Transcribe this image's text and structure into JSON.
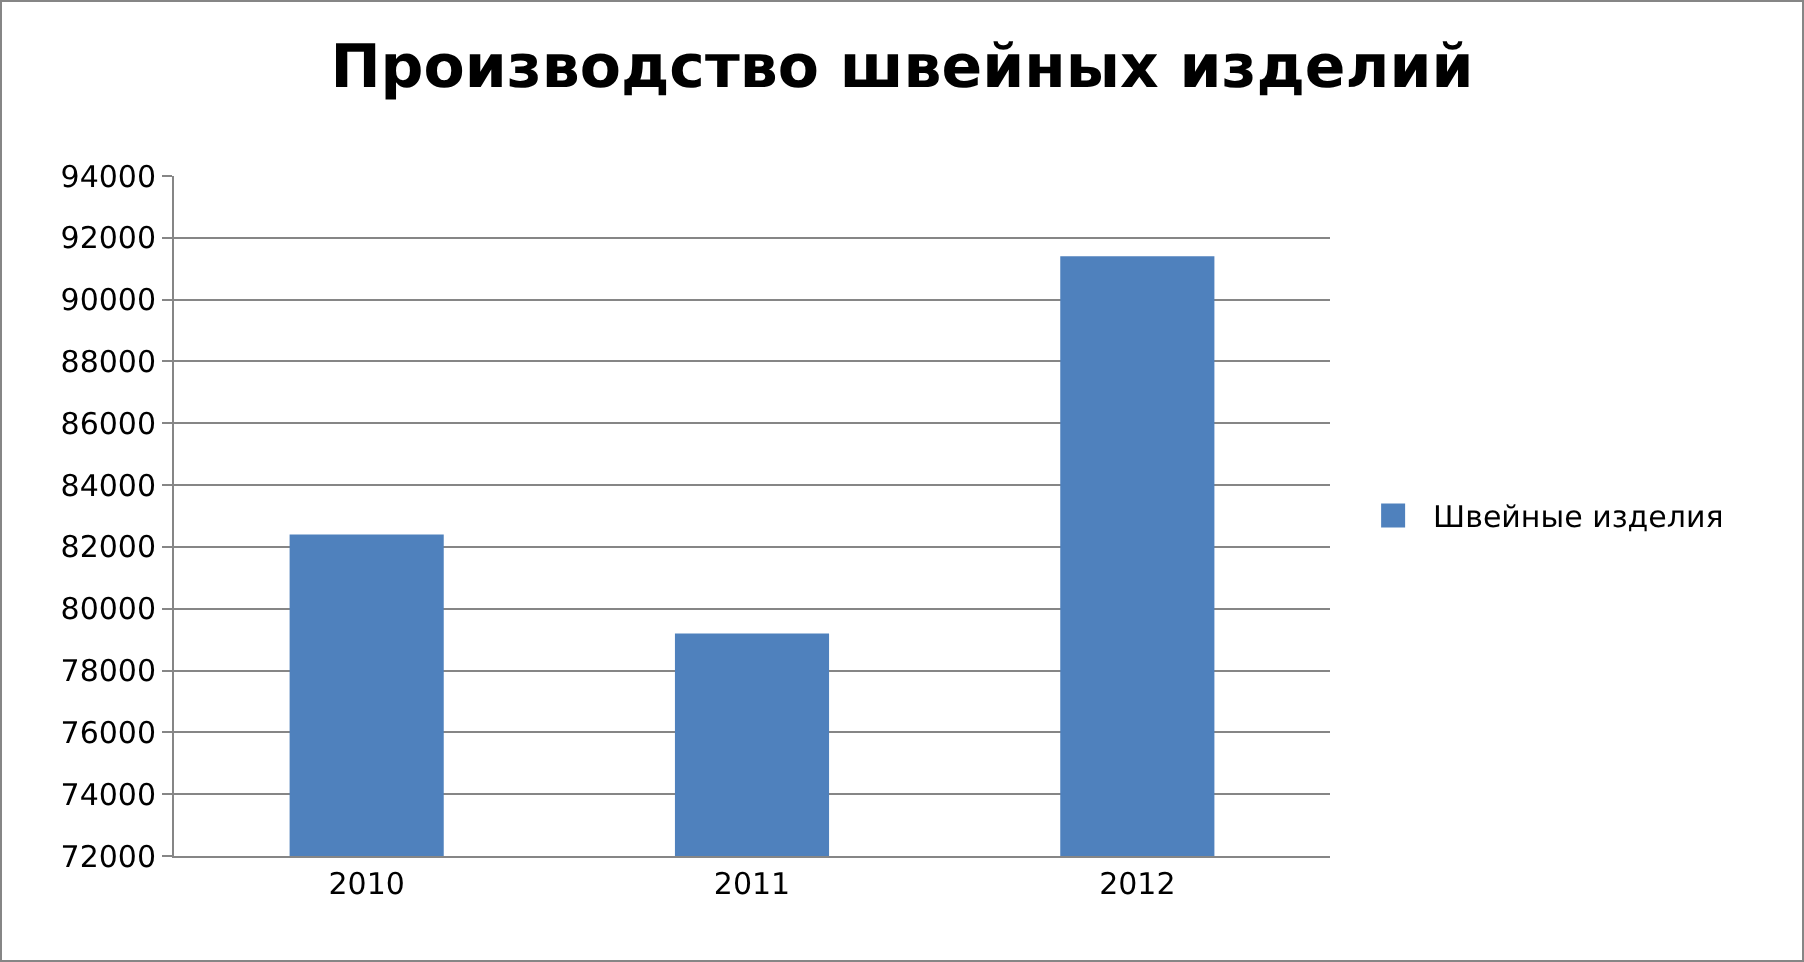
{
  "chart_data": {
    "type": "bar",
    "title": "Производство швейных изделий",
    "categories": [
      "2010",
      "2011",
      "2012"
    ],
    "series": [
      {
        "name": "Швейные изделия",
        "color": "#4f81bd",
        "values": [
          82400,
          79200,
          91400
        ]
      }
    ],
    "ylim": [
      72000,
      94000
    ],
    "yticks": [
      72000,
      74000,
      76000,
      78000,
      80000,
      82000,
      84000,
      86000,
      88000,
      90000,
      92000,
      94000
    ],
    "grid": "y",
    "legend": "right"
  }
}
